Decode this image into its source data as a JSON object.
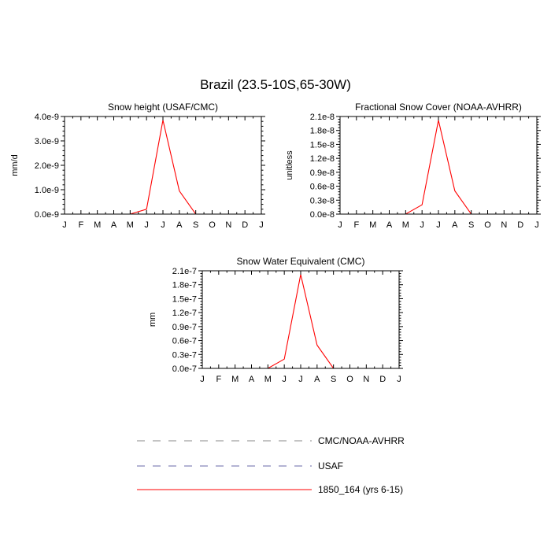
{
  "figure": {
    "title": "Brazil (23.5-10S,65-30W)"
  },
  "legend": {
    "items": [
      {
        "label": "CMC/NOAA-AVHRR",
        "color": "#8a8a8a",
        "dash": "dashed"
      },
      {
        "label": "USAF",
        "color": "#6a6aa8",
        "dash": "dashed"
      },
      {
        "label": "1850_164 (yrs 6-15)",
        "color": "#ff0000",
        "dash": "solid"
      }
    ]
  },
  "chart_data": [
    {
      "type": "line",
      "title": "Snow height (USAF/CMC)",
      "xlabel": "",
      "ylabel": "mm/d",
      "categories": [
        "J",
        "F",
        "M",
        "A",
        "M",
        "J",
        "J",
        "A",
        "S",
        "O",
        "N",
        "D",
        "J"
      ],
      "ylim": [
        0,
        4e-09
      ],
      "yticks": [
        "0.0e-9",
        "1.0e-9",
        "2.0e-9",
        "3.0e-9",
        "4.0e-9"
      ],
      "series": [
        {
          "name": "CMC/NOAA-AVHRR",
          "color": "#8a8a8a",
          "dash": "dashed",
          "values": [
            0,
            0,
            0,
            0,
            0,
            0,
            0,
            0,
            0,
            0,
            0,
            0,
            0
          ]
        },
        {
          "name": "USAF",
          "color": "#6a6aa8",
          "dash": "dashed",
          "values": [
            0,
            0,
            0,
            0,
            0,
            0,
            0,
            0,
            0,
            0,
            0,
            0,
            0
          ]
        },
        {
          "name": "1850_164 (yrs 6-15)",
          "color": "#ff0000",
          "dash": "solid",
          "values": [
            0,
            0,
            0,
            0,
            0,
            2e-10,
            3.85e-09,
            9.5e-10,
            0,
            0,
            0,
            0,
            0
          ]
        }
      ],
      "grid": false
    },
    {
      "type": "line",
      "title": "Fractional Snow Cover (NOAA-AVHRR)",
      "xlabel": "",
      "ylabel": "unitless",
      "categories": [
        "J",
        "F",
        "M",
        "A",
        "M",
        "J",
        "J",
        "A",
        "S",
        "O",
        "N",
        "D",
        "J"
      ],
      "ylim": [
        0,
        2.1e-08
      ],
      "yticks": [
        "0.0e-8",
        "0.3e-8",
        "0.6e-8",
        "0.9e-8",
        "1.2e-8",
        "1.5e-8",
        "1.8e-8",
        "2.1e-8"
      ],
      "series": [
        {
          "name": "CMC/NOAA-AVHRR",
          "color": "#8a8a8a",
          "dash": "dashed",
          "values": [
            0,
            0,
            0,
            0,
            0,
            0,
            0,
            0,
            0,
            0,
            0,
            0,
            0
          ]
        },
        {
          "name": "USAF",
          "color": "#6a6aa8",
          "dash": "dashed",
          "values": [
            0,
            0,
            0,
            0,
            0,
            0,
            0,
            0,
            0,
            0,
            0,
            0,
            0
          ]
        },
        {
          "name": "1850_164 (yrs 6-15)",
          "color": "#ff0000",
          "dash": "solid",
          "values": [
            0,
            0,
            0,
            0,
            0,
            2e-09,
            2.02e-08,
            5e-09,
            0,
            0,
            0,
            0,
            0
          ]
        }
      ],
      "grid": false
    },
    {
      "type": "line",
      "title": "Snow Water Equivalent (CMC)",
      "xlabel": "",
      "ylabel": "mm",
      "categories": [
        "J",
        "F",
        "M",
        "A",
        "M",
        "J",
        "J",
        "A",
        "S",
        "O",
        "N",
        "D",
        "J"
      ],
      "ylim": [
        0,
        2.1e-07
      ],
      "yticks": [
        "0.0e-7",
        "0.3e-7",
        "0.6e-7",
        "0.9e-7",
        "1.2e-7",
        "1.5e-7",
        "1.8e-7",
        "2.1e-7"
      ],
      "series": [
        {
          "name": "CMC/NOAA-AVHRR",
          "color": "#8a8a8a",
          "dash": "dashed",
          "values": [
            0,
            0,
            0,
            0,
            0,
            0,
            0,
            0,
            0,
            0,
            0,
            0,
            0
          ]
        },
        {
          "name": "USAF",
          "color": "#6a6aa8",
          "dash": "dashed",
          "values": [
            0,
            0,
            0,
            0,
            0,
            0,
            0,
            0,
            0,
            0,
            0,
            0,
            0
          ]
        },
        {
          "name": "1850_164 (yrs 6-15)",
          "color": "#ff0000",
          "dash": "solid",
          "values": [
            0,
            0,
            0,
            0,
            0,
            2e-08,
            2.02e-07,
            5e-08,
            0,
            0,
            0,
            0,
            0
          ]
        }
      ],
      "grid": false
    }
  ]
}
